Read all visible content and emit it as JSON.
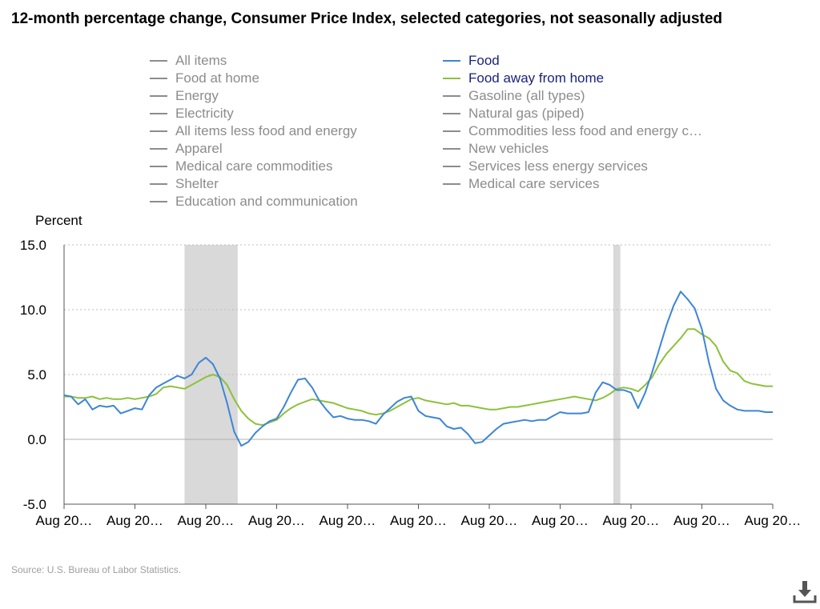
{
  "title": "12-month percentage change, Consumer Price Index, selected categories, not seasonally adjusted",
  "source": "Source: U.S. Bureau of Labor Statistics.",
  "colors": {
    "food": "#3d85d6",
    "food_away": "#8cc13b",
    "inactive": "#8c8c8c",
    "recession": "#d9d9d9",
    "grid": "#bdbdbd"
  },
  "icons": {
    "download": "download-icon"
  },
  "legend": [
    {
      "label": "All items",
      "active": false
    },
    {
      "label": "Food",
      "active": true,
      "color": "#3d85d6"
    },
    {
      "label": "Food at home",
      "active": false
    },
    {
      "label": "Food away from home",
      "active": true,
      "color": "#8cc13b"
    },
    {
      "label": "Energy",
      "active": false
    },
    {
      "label": "Gasoline (all types)",
      "active": false
    },
    {
      "label": "Electricity",
      "active": false
    },
    {
      "label": "Natural gas (piped)",
      "active": false
    },
    {
      "label": "All items less food and energy",
      "active": false
    },
    {
      "label": "Commodities less food and energy c…",
      "active": false
    },
    {
      "label": "Apparel",
      "active": false
    },
    {
      "label": "New vehicles",
      "active": false
    },
    {
      "label": "Medical care commodities",
      "active": false
    },
    {
      "label": "Services less energy services",
      "active": false
    },
    {
      "label": "Shelter",
      "active": false
    },
    {
      "label": "Medical care services",
      "active": false
    },
    {
      "label": "Education and communication",
      "active": false
    }
  ],
  "chart_data": {
    "type": "line",
    "title": "12-month percentage change, Consumer Price Index, selected categories, not seasonally adjusted",
    "ylabel": "Percent",
    "xlabel": "",
    "ylim": [
      -5.0,
      15.0
    ],
    "yticks": [
      "15.0",
      "10.0",
      "5.0",
      "0.0",
      "-5.0"
    ],
    "yticks_values": [
      15,
      10,
      5,
      0,
      -5
    ],
    "xlim": [
      0,
      200
    ],
    "xtick_labels": [
      "Aug 20…",
      "Aug 20…",
      "Aug 20…",
      "Aug 20…",
      "Aug 20…",
      "Aug 20…",
      "Aug 20…",
      "Aug 20…",
      "Aug 20…",
      "Aug 20…",
      "Aug 20…"
    ],
    "xtick_positions": [
      0,
      20,
      40,
      60,
      80,
      100,
      120,
      140,
      160,
      180,
      200
    ],
    "grid": "horizontal dotted",
    "legend_position": "top",
    "recessions": [
      [
        34,
        49
      ],
      [
        155,
        157
      ]
    ],
    "series": [
      {
        "name": "Food",
        "color": "#3d85d6",
        "x": [
          0,
          2,
          4,
          6,
          8,
          10,
          12,
          14,
          16,
          18,
          20,
          22,
          24,
          26,
          28,
          30,
          32,
          34,
          36,
          38,
          40,
          42,
          44,
          46,
          48,
          50,
          52,
          54,
          56,
          58,
          60,
          62,
          64,
          66,
          68,
          70,
          72,
          74,
          76,
          78,
          80,
          82,
          84,
          86,
          88,
          90,
          92,
          94,
          96,
          98,
          100,
          102,
          104,
          106,
          108,
          110,
          112,
          114,
          116,
          118,
          120,
          122,
          124,
          126,
          128,
          130,
          132,
          134,
          136,
          138,
          140,
          142,
          144,
          146,
          148,
          150,
          152,
          154,
          156,
          158,
          160,
          162,
          164,
          166,
          168,
          170,
          172,
          174,
          176,
          178,
          180,
          182,
          184,
          186,
          188,
          190,
          192,
          194,
          196,
          198,
          200
        ],
        "values": [
          3.4,
          3.3,
          2.7,
          3.1,
          2.3,
          2.6,
          2.5,
          2.6,
          2.0,
          2.2,
          2.4,
          2.3,
          3.4,
          4.0,
          4.3,
          4.6,
          4.9,
          4.7,
          5.0,
          5.9,
          6.3,
          5.8,
          4.7,
          2.8,
          0.6,
          -0.5,
          -0.2,
          0.5,
          1.0,
          1.4,
          1.6,
          2.5,
          3.6,
          4.6,
          4.7,
          4.0,
          3.0,
          2.3,
          1.7,
          1.8,
          1.6,
          1.5,
          1.5,
          1.4,
          1.2,
          1.9,
          2.4,
          2.9,
          3.2,
          3.3,
          2.2,
          1.8,
          1.7,
          1.6,
          1.0,
          0.8,
          0.9,
          0.4,
          -0.3,
          -0.2,
          0.3,
          0.8,
          1.2,
          1.3,
          1.4,
          1.5,
          1.4,
          1.5,
          1.5,
          1.8,
          2.1,
          2.0,
          2.0,
          2.0,
          2.1,
          3.6,
          4.4,
          4.2,
          3.8,
          3.8,
          3.6,
          2.4,
          3.6,
          5.2,
          7.0,
          8.8,
          10.3,
          11.4,
          10.8,
          10.1,
          8.5,
          5.9,
          3.9,
          3.0,
          2.6,
          2.3,
          2.2,
          2.2,
          2.2,
          2.1,
          2.1
        ]
      },
      {
        "name": "Food away from home",
        "color": "#8cc13b",
        "x": [
          0,
          2,
          4,
          6,
          8,
          10,
          12,
          14,
          16,
          18,
          20,
          22,
          24,
          26,
          28,
          30,
          32,
          34,
          36,
          38,
          40,
          42,
          44,
          46,
          48,
          50,
          52,
          54,
          56,
          58,
          60,
          62,
          64,
          66,
          68,
          70,
          72,
          74,
          76,
          78,
          80,
          82,
          84,
          86,
          88,
          90,
          92,
          94,
          96,
          98,
          100,
          102,
          104,
          106,
          108,
          110,
          112,
          114,
          116,
          118,
          120,
          122,
          124,
          126,
          128,
          130,
          132,
          134,
          136,
          138,
          140,
          142,
          144,
          146,
          148,
          150,
          152,
          154,
          156,
          158,
          160,
          162,
          164,
          166,
          168,
          170,
          172,
          174,
          176,
          178,
          180,
          182,
          184,
          186,
          188,
          190,
          192,
          194,
          196,
          198,
          200
        ],
        "values": [
          3.3,
          3.3,
          3.2,
          3.2,
          3.3,
          3.1,
          3.2,
          3.1,
          3.1,
          3.2,
          3.1,
          3.2,
          3.3,
          3.5,
          4.0,
          4.1,
          4.0,
          3.9,
          4.2,
          4.5,
          4.8,
          5.0,
          4.8,
          4.2,
          3.1,
          2.2,
          1.6,
          1.2,
          1.1,
          1.3,
          1.5,
          2.0,
          2.4,
          2.7,
          2.9,
          3.1,
          3.0,
          2.9,
          2.8,
          2.6,
          2.4,
          2.3,
          2.2,
          2.0,
          1.9,
          2.0,
          2.2,
          2.5,
          2.8,
          3.1,
          3.2,
          3.0,
          2.9,
          2.8,
          2.7,
          2.8,
          2.6,
          2.6,
          2.5,
          2.4,
          2.3,
          2.3,
          2.4,
          2.5,
          2.5,
          2.6,
          2.7,
          2.8,
          2.9,
          3.0,
          3.1,
          3.2,
          3.3,
          3.2,
          3.1,
          3.0,
          3.2,
          3.5,
          3.9,
          4.0,
          3.9,
          3.7,
          4.2,
          4.8,
          5.8,
          6.6,
          7.2,
          7.8,
          8.5,
          8.5,
          8.1,
          7.8,
          7.2,
          6.0,
          5.3,
          5.1,
          4.5,
          4.3,
          4.2,
          4.1,
          4.1
        ]
      }
    ]
  }
}
